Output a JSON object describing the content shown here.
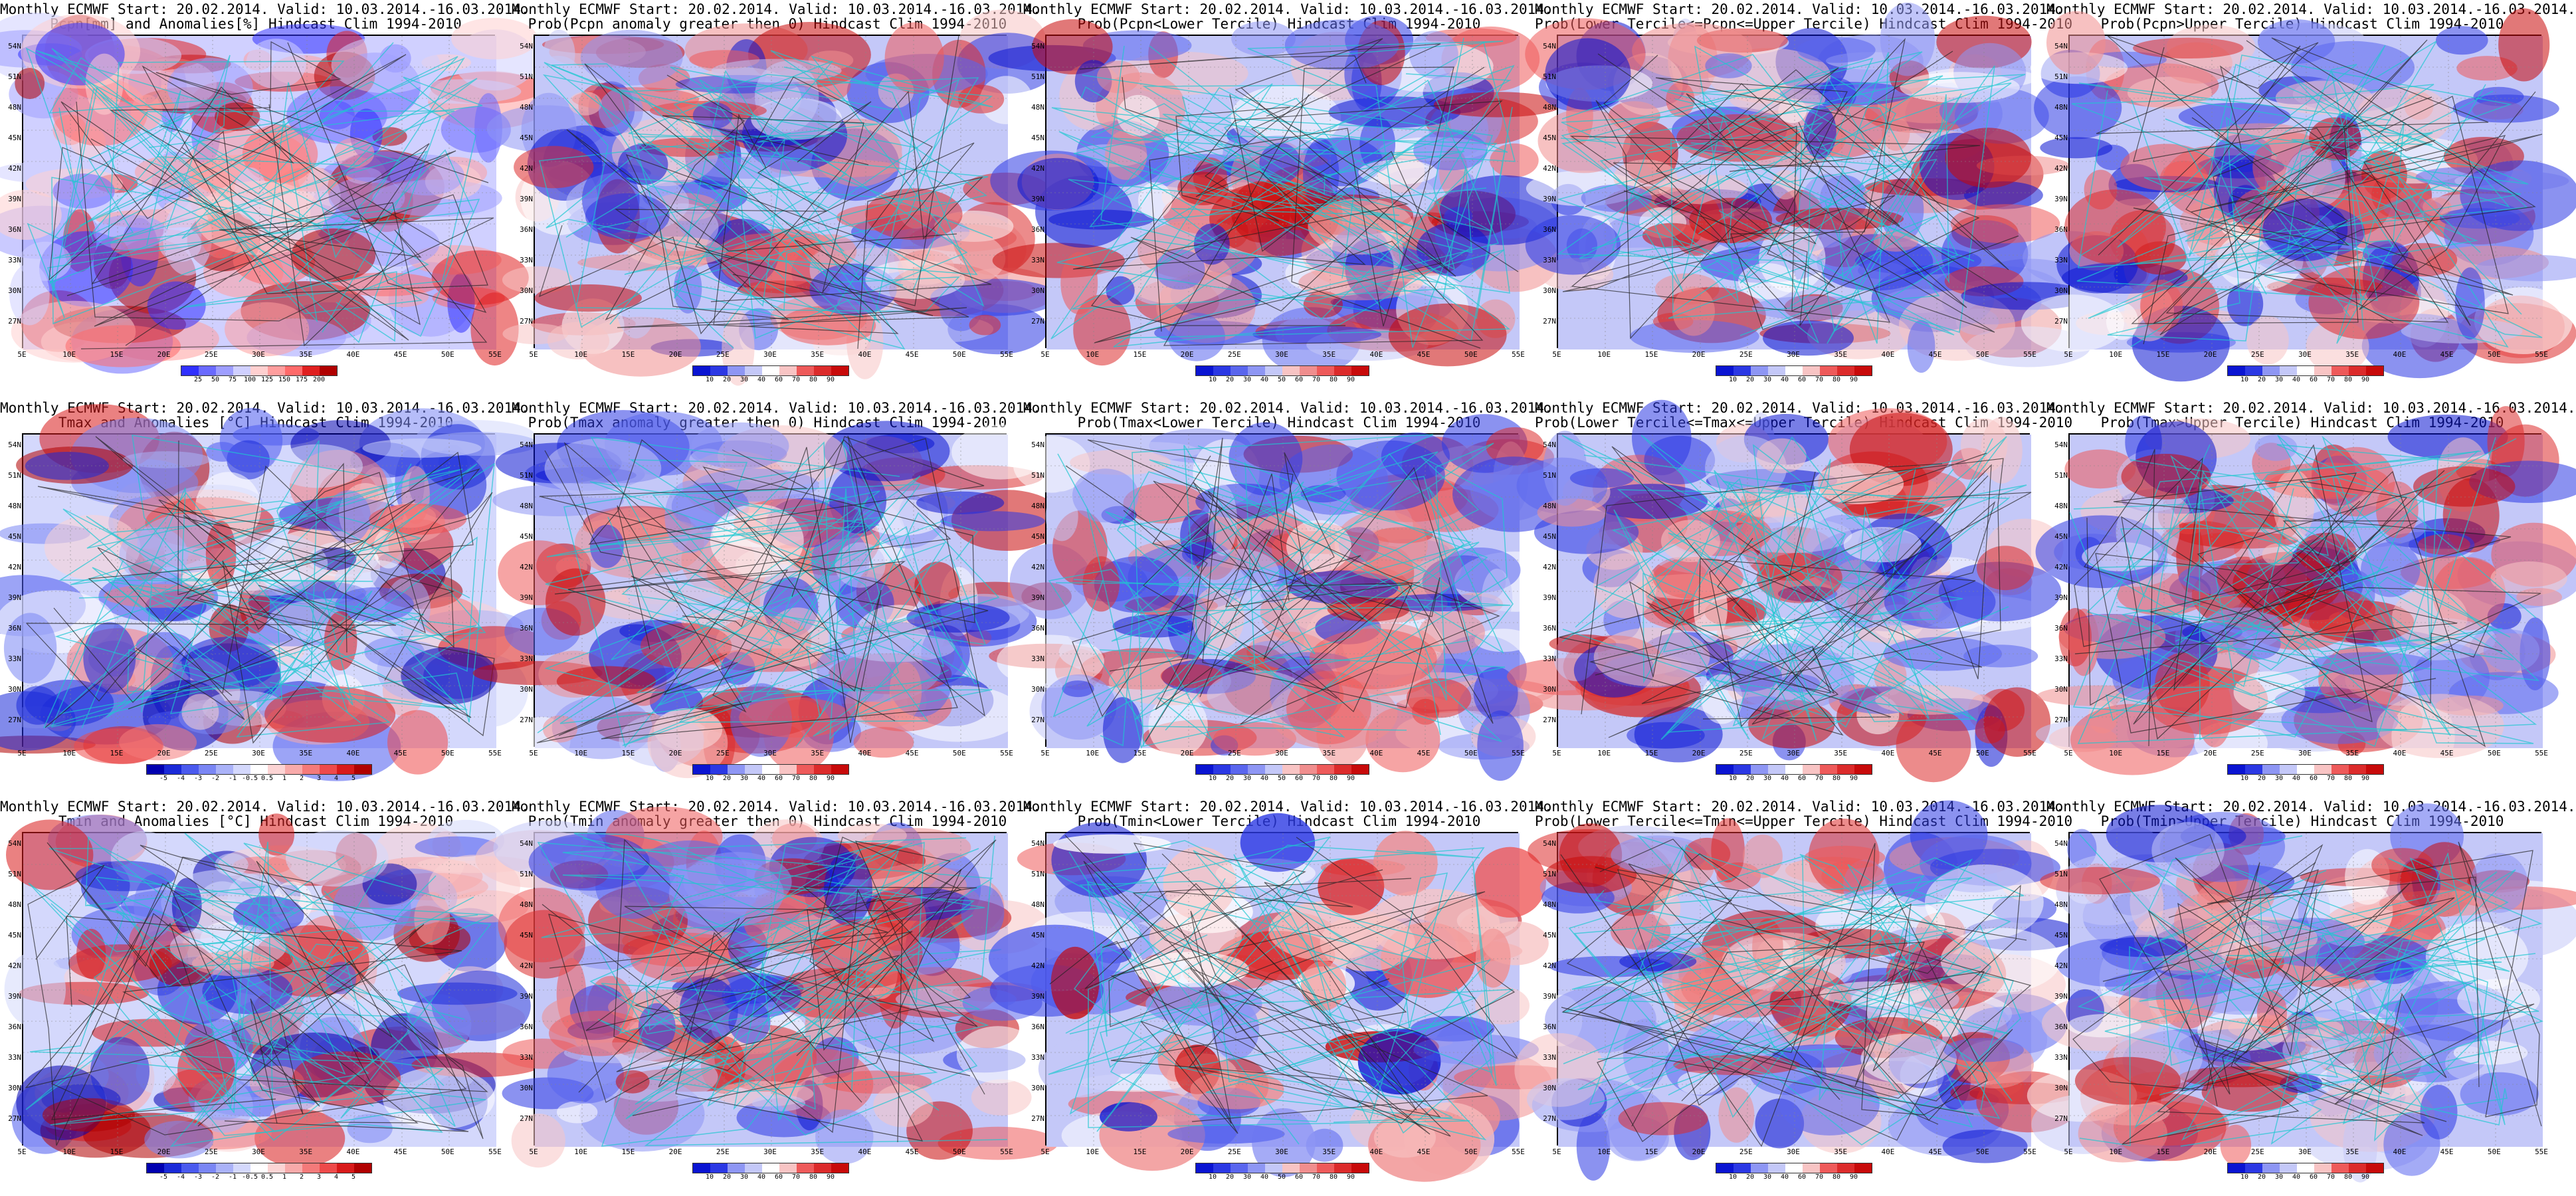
{
  "panels": [
    {
      "title1": "Monthly ECMWF Start: 20.02.2014. Valid: 10.03.2014.-16.03.2014.",
      "title2": "Pcpn[mm] and Anomalies[%] Hindcast Clim 1994-2010",
      "colorbar": [
        "25",
        "50",
        "75",
        "100",
        "125",
        "150",
        "175",
        "200"
      ],
      "palette": "prec"
    },
    {
      "title1": "Monthly ECMWF Start: 20.02.2014. Valid: 10.03.2014.-16.03.2014.",
      "title2": "Prob(Pcpn anomaly greater then 0) Hindcast Clim 1994-2010",
      "colorbar": [
        "10",
        "20",
        "30",
        "40",
        "60",
        "70",
        "80",
        "90"
      ],
      "palette": "prob"
    },
    {
      "title1": "Monthly ECMWF Start: 20.02.2014. Valid: 10.03.2014.-16.03.2014.",
      "title2": "Prob(Pcpn<Lower Tercile) Hindcast Clim 1994-2010",
      "colorbar": [
        "10",
        "20",
        "30",
        "40",
        "50",
        "60",
        "70",
        "80",
        "90"
      ],
      "palette": "prob"
    },
    {
      "title1": "Monthly ECMWF Start: 20.02.2014. Valid: 10.03.2014.-16.03.2014.",
      "title2": "Prob(Lower Tercile<=Pcpn<=Upper Tercile) Hindcast Clim 1994-2010",
      "colorbar": [
        "10",
        "20",
        "30",
        "40",
        "60",
        "70",
        "80",
        "90"
      ],
      "palette": "prob"
    },
    {
      "title1": "Monthly ECMWF Start: 20.02.2014. Valid: 10.03.2014.-16.03.2014.",
      "title2": "Prob(Pcpn>Upper Tercile) Hindcast Clim 1994-2010",
      "colorbar": [
        "10",
        "20",
        "30",
        "40",
        "60",
        "70",
        "80",
        "90"
      ],
      "palette": "prob"
    },
    {
      "title1": "Monthly ECMWF Start: 20.02.2014. Valid: 10.03.2014.-16.03.2014.",
      "title2": "Tmax and Anomalies [°C] Hindcast Clim 1994-2010",
      "colorbar": [
        "-5",
        "-4",
        "-3",
        "-2",
        "-1",
        "-0.5",
        "0.5",
        "1",
        "2",
        "3",
        "4",
        "5"
      ],
      "palette": "temp"
    },
    {
      "title1": "Monthly ECMWF Start: 20.02.2014. Valid: 10.03.2014.-16.03.2014.",
      "title2": "Prob(Tmax anomaly greater then 0) Hindcast Clim 1994-2010",
      "colorbar": [
        "10",
        "20",
        "30",
        "40",
        "60",
        "70",
        "80",
        "90"
      ],
      "palette": "prob"
    },
    {
      "title1": "Monthly ECMWF Start: 20.02.2014. Valid: 10.03.2014.-16.03.2014.",
      "title2": "Prob(Tmax<Lower Tercile) Hindcast Clim 1994-2010",
      "colorbar": [
        "10",
        "20",
        "30",
        "40",
        "50",
        "60",
        "70",
        "80",
        "90"
      ],
      "palette": "prob"
    },
    {
      "title1": "Monthly ECMWF Start: 20.02.2014. Valid: 10.03.2014.-16.03.2014.",
      "title2": "Prob(Lower Tercile<=Tmax<=Upper Tercile) Hindcast Clim 1994-2010",
      "colorbar": [
        "10",
        "20",
        "30",
        "40",
        "60",
        "70",
        "80",
        "90"
      ],
      "palette": "prob"
    },
    {
      "title1": "Monthly ECMWF Start: 20.02.2014. Valid: 10.03.2014.-16.03.2014.",
      "title2": "Prob(Tmax>Upper Tercile) Hindcast Clim 1994-2010",
      "colorbar": [
        "10",
        "20",
        "30",
        "40",
        "60",
        "70",
        "80",
        "90"
      ],
      "palette": "prob"
    },
    {
      "title1": "Monthly ECMWF Start: 20.02.2014. Valid: 10.03.2014.-16.03.2014.",
      "title2": "Tmin and Anomalies [°C] Hindcast Clim 1994-2010",
      "colorbar": [
        "-5",
        "-4",
        "-3",
        "-2",
        "-1",
        "-0.5",
        "0.5",
        "1",
        "2",
        "3",
        "4",
        "5"
      ],
      "palette": "temp"
    },
    {
      "title1": "Monthly ECMWF Start: 20.02.2014. Valid: 10.03.2014.-16.03.2014.",
      "title2": "Prob(Tmin anomaly greater then 0) Hindcast Clim 1994-2010",
      "colorbar": [
        "10",
        "20",
        "30",
        "40",
        "60",
        "70",
        "80",
        "90"
      ],
      "palette": "prob"
    },
    {
      "title1": "Monthly ECMWF Start: 20.02.2014. Valid: 10.03.2014.-16.03.2014.",
      "title2": "Prob(Tmin<Lower Tercile) Hindcast Clim 1994-2010",
      "colorbar": [
        "10",
        "20",
        "30",
        "40",
        "50",
        "60",
        "70",
        "80",
        "90"
      ],
      "palette": "prob"
    },
    {
      "title1": "Monthly ECMWF Start: 20.02.2014. Valid: 10.03.2014.-16.03.2014.",
      "title2": "Prob(Lower Tercile<=Tmin<=Upper Tercile) Hindcast Clim 1994-2010",
      "colorbar": [
        "10",
        "20",
        "30",
        "40",
        "60",
        "70",
        "80",
        "90"
      ],
      "palette": "prob"
    },
    {
      "title1": "Monthly ECMWF Start: 20.02.2014. Valid: 10.03.2014.-16.03.2014.",
      "title2": "Prob(Tmin>Upper Tercile) Hindcast Clim 1994-2010",
      "colorbar": [
        "10",
        "20",
        "30",
        "40",
        "60",
        "70",
        "80",
        "90"
      ],
      "palette": "prob"
    }
  ],
  "lat_labels": [
    "54N",
    "51N",
    "48N",
    "45N",
    "42N",
    "39N",
    "36N",
    "33N",
    "30N",
    "27N"
  ],
  "lon_labels": [
    "5E",
    "10E",
    "15E",
    "20E",
    "25E",
    "30E",
    "35E",
    "40E",
    "45E",
    "50E",
    "55E"
  ],
  "colors": {
    "frame": "#000000",
    "coastline": "#1ec8d0",
    "contour": "#222222",
    "blue_dark": "#0a14d2",
    "blue_mid": "#5a66ee",
    "blue_light": "#c4c8f8",
    "white": "#ffffff",
    "red_light": "#f8c4c4",
    "red_mid": "#ee5a5a",
    "red_dark": "#c80a0a"
  }
}
